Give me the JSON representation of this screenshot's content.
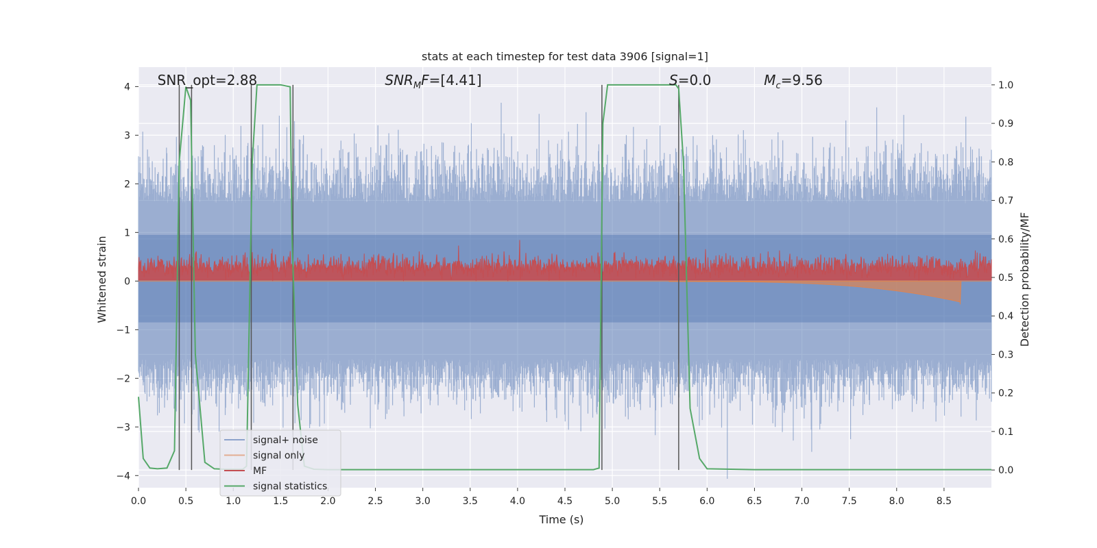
{
  "chart_data": {
    "type": "line",
    "title": "stats at each timestep for test data 3906 [signal=1]",
    "xlabel": "Time (s)",
    "ylabel_left": "Whitened strain",
    "ylabel_right": "Detection probability/MF",
    "xlim": [
      0,
      9.0
    ],
    "ylim_left": [
      -4.25,
      4.4
    ],
    "ylim_right": [
      -0.046,
      1.046
    ],
    "x_ticks": [
      "0.0",
      "0.5",
      "1.0",
      "1.5",
      "2.0",
      "2.5",
      "3.0",
      "3.5",
      "4.0",
      "4.5",
      "5.0",
      "5.5",
      "6.0",
      "6.5",
      "7.0",
      "7.5",
      "8.0",
      "8.5"
    ],
    "y_ticks_left": [
      "−4",
      "−3",
      "−2",
      "−1",
      "0",
      "1",
      "2",
      "3",
      "4"
    ],
    "y_ticks_right": [
      "0.0",
      "0.1",
      "0.2",
      "0.3",
      "0.4",
      "0.5",
      "0.6",
      "0.7",
      "0.8",
      "0.9",
      "1.0"
    ],
    "grid": true,
    "legend_position": "lower-left",
    "annotations": [
      {
        "text": "SNR_opt=2.88",
        "x": 0.2
      },
      {
        "text": "SNR_MF=[4.41]",
        "x": 2.6
      },
      {
        "text": "S=0.0",
        "x": 5.6
      },
      {
        "text": "M_c=9.56",
        "x": 6.6
      }
    ],
    "series": [
      {
        "name": "signal+ noise",
        "axis": "left",
        "color": "#4c72b0",
        "description_shape": "dense noise, amplitude ~±3"
      },
      {
        "name": "signal only",
        "axis": "left",
        "color": "#dd8452",
        "description_shape": "chirp rising near 8.67 s, min ~ -0.5"
      },
      {
        "name": "MF",
        "axis": "left",
        "color": "#c44e52",
        "description_shape": "positive noise 0 to ~0.9"
      },
      {
        "name": "signal statistics",
        "axis": "right",
        "color": "#55a868",
        "x": [
          0.0,
          0.05,
          0.12,
          0.2,
          0.3,
          0.38,
          0.43,
          0.5,
          0.55,
          0.6,
          0.7,
          0.8,
          0.9,
          1.0,
          1.1,
          1.14,
          1.2,
          1.25,
          1.3,
          1.5,
          1.6,
          1.62,
          1.68,
          1.75,
          1.85,
          2.0,
          3.0,
          4.0,
          4.8,
          4.86,
          4.9,
          4.95,
          5.0,
          5.5,
          5.67,
          5.7,
          5.75,
          5.82,
          5.92,
          6.0,
          6.5,
          7.0,
          8.0,
          9.0
        ],
        "y": [
          0.19,
          0.03,
          0.005,
          0.003,
          0.005,
          0.05,
          0.8,
          0.995,
          0.96,
          0.3,
          0.02,
          0.003,
          0.002,
          0.002,
          0.002,
          0.01,
          0.8,
          1.0,
          1.0,
          1.0,
          0.995,
          0.6,
          0.17,
          0.01,
          0.002,
          0.001,
          0.001,
          0.001,
          0.001,
          0.005,
          0.9,
          1.0,
          1.0,
          1.0,
          1.0,
          0.99,
          0.8,
          0.16,
          0.03,
          0.003,
          0.001,
          0.001,
          0.001,
          0.001
        ]
      }
    ],
    "vertical_markers_x": [
      0.43,
      0.56,
      1.19,
      1.63,
      4.89,
      5.7
    ]
  }
}
